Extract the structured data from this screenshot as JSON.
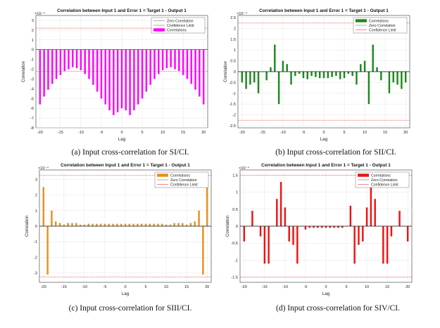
{
  "captions": [
    "(a) Input cross-correlation for SI/CI.",
    "(b) Input cross-correlation for SII/CI.",
    "(c) Input cross-correlation for SIII/CI.",
    "(d) Input cross-correlation for SIV/CI."
  ],
  "chart_data": [
    {
      "type": "bar",
      "title": "Correlation between Input 1 and Error 1 = Target 1 - Output 1",
      "xlabel": "Lag",
      "ylabel": "Correlation",
      "exponent": "×10⁻⁴",
      "xlim": [
        -21,
        21
      ],
      "ylim": [
        -8,
        3.5
      ],
      "yticks": [
        -8,
        -7,
        -6,
        -5,
        -4,
        -3,
        -2,
        -1,
        0,
        1,
        2,
        3
      ],
      "xticks": [
        -20,
        -15,
        -10,
        -5,
        0,
        5,
        10,
        15,
        20
      ],
      "confidence_limit": [
        2.2,
        -2.2
      ],
      "bar_color": "#ff00ff",
      "legend_position": "top-right",
      "legend": [
        "Zero Correlation",
        "Confidence Limit",
        "Correlations"
      ],
      "legend_kinds": [
        "line-gray",
        "line-red",
        "bar"
      ],
      "x": [
        -20,
        -19,
        -18,
        -17,
        -16,
        -15,
        -14,
        -13,
        -12,
        -11,
        -10,
        -9,
        -8,
        -7,
        -6,
        -5,
        -4,
        -3,
        -2,
        -1,
        0,
        1,
        2,
        3,
        4,
        5,
        6,
        7,
        8,
        9,
        10,
        11,
        12,
        13,
        14,
        15,
        16,
        17,
        18,
        19,
        20
      ],
      "values": [
        -5.6,
        -4.8,
        -4.1,
        -3.5,
        -3.0,
        -2.6,
        -2.2,
        -2.0,
        -1.8,
        -1.9,
        -2.1,
        -2.5,
        -3.0,
        -3.6,
        -4.3,
        -5.0,
        -5.6,
        -6.2,
        -6.7,
        -6.4,
        -6.0,
        -6.2,
        -6.7,
        -6.2,
        -5.6,
        -5.0,
        -4.3,
        -3.6,
        -3.0,
        -2.5,
        -2.1,
        -1.9,
        -1.8,
        -2.0,
        -2.2,
        -2.6,
        -3.0,
        -3.5,
        -4.1,
        -4.8,
        -5.6
      ]
    },
    {
      "type": "bar",
      "title": "Correlation between Input 1 and Error 1 = Target 1 - Output 1",
      "xlabel": "Lag",
      "ylabel": "Correlation",
      "exponent": "×10⁻⁴",
      "xlim": [
        -21,
        21
      ],
      "ylim": [
        -2.6,
        2.6
      ],
      "yticks": [
        -2.5,
        -2,
        -1.5,
        -1,
        -0.5,
        0,
        0.5,
        1,
        1.5,
        2,
        2.5
      ],
      "xticks": [
        -20,
        -15,
        -10,
        -5,
        0,
        5,
        10,
        15,
        20
      ],
      "confidence_limit": [
        2.25,
        -2.25
      ],
      "bar_color": "#1a8a1a",
      "legend_position": "top-right",
      "legend": [
        "Correlations",
        "Zero Correlation",
        "Confidence Limit"
      ],
      "legend_kinds": [
        "bar",
        "line-gray",
        "line-red"
      ],
      "x": [
        -20,
        -19,
        -18,
        -17,
        -16,
        -15,
        -14,
        -13,
        -12,
        -11,
        -10,
        -9,
        -8,
        -7,
        -6,
        -5,
        -4,
        -3,
        -2,
        -1,
        0,
        1,
        2,
        3,
        4,
        5,
        6,
        7,
        8,
        9,
        10,
        11,
        12,
        13,
        14,
        15,
        16,
        17,
        18,
        19,
        20
      ],
      "values": [
        -0.5,
        -0.8,
        -0.6,
        -0.5,
        -1.0,
        0.0,
        -0.4,
        0.2,
        1.25,
        -1.5,
        0.5,
        0.35,
        -0.6,
        -0.2,
        -0.1,
        -0.3,
        -0.35,
        -0.2,
        -0.25,
        -0.3,
        -0.3,
        -0.3,
        -0.25,
        -0.2,
        -0.35,
        -0.3,
        -0.1,
        -0.2,
        -0.6,
        0.35,
        0.5,
        -1.5,
        1.25,
        0.2,
        -0.4,
        0.0,
        -1.0,
        -0.5,
        -0.6,
        -0.8,
        -0.5
      ]
    },
    {
      "type": "bar",
      "title": "Correlation between Input 1 and Error 1 = Target 1 - Output 1",
      "xlabel": "Lag",
      "ylabel": "Correlation",
      "exponent": "×10⁻⁴",
      "xlim": [
        -21,
        21
      ],
      "ylim": [
        -3.6,
        3.6
      ],
      "yticks": [
        -3,
        -2,
        -1,
        0,
        1,
        2,
        3
      ],
      "xticks": [
        -20,
        -15,
        -10,
        -5,
        0,
        5,
        10,
        15,
        20
      ],
      "confidence_limit": [
        3.25,
        -3.25
      ],
      "bar_color": "#e8901a",
      "legend_position": "top-right",
      "legend": [
        "Correlations",
        "Zero Correlation",
        "Confidence Limit"
      ],
      "legend_kinds": [
        "bar",
        "line-gray",
        "line-red"
      ],
      "x": [
        -20,
        -19,
        -18,
        -17,
        -16,
        -15,
        -14,
        -13,
        -12,
        -11,
        -10,
        -9,
        -8,
        -7,
        -6,
        -5,
        -4,
        -3,
        -2,
        -1,
        0,
        1,
        2,
        3,
        4,
        5,
        6,
        7,
        8,
        9,
        10,
        11,
        12,
        13,
        14,
        15,
        16,
        17,
        18,
        19,
        20
      ],
      "values": [
        2.5,
        -3.1,
        1.0,
        0.3,
        0.2,
        0.1,
        0.2,
        0.2,
        0.2,
        0.1,
        0.1,
        0.15,
        0.15,
        0.15,
        0.15,
        0.15,
        0.15,
        0.15,
        0.15,
        0.15,
        0.15,
        0.15,
        0.15,
        0.15,
        0.15,
        0.15,
        0.15,
        0.15,
        0.15,
        0.15,
        0.1,
        0.1,
        0.2,
        0.2,
        0.2,
        0.1,
        0.2,
        0.3,
        1.0,
        -3.1,
        2.5
      ]
    },
    {
      "type": "bar",
      "title": "Correlation between Input 1 and Error 1 = Target 1 - Output 1",
      "xlabel": "Lag",
      "ylabel": "Correlation",
      "exponent": "×10⁻⁴",
      "xlim": [
        -21,
        21
      ],
      "ylim": [
        -1.65,
        1.65
      ],
      "yticks": [
        -1.5,
        -1,
        -0.5,
        0,
        0.5,
        1,
        1.5
      ],
      "xticks": [
        -20,
        -15,
        -10,
        -5,
        0,
        5,
        10,
        15,
        20
      ],
      "confidence_limit": [
        1.5,
        -1.5
      ],
      "bar_color": "#ee1111",
      "legend_position": "top-right",
      "legend": [
        "Correlations",
        "Zero Correlation",
        "Confidence Limit"
      ],
      "legend_kinds": [
        "bar",
        "line-gray",
        "line-red"
      ],
      "x": [
        -20,
        -19,
        -18,
        -17,
        -16,
        -15,
        -14,
        -13,
        -12,
        -11,
        -10,
        -9,
        -8,
        -7,
        -6,
        -5,
        -4,
        -3,
        -2,
        -1,
        0,
        1,
        2,
        3,
        4,
        5,
        6,
        7,
        8,
        9,
        10,
        11,
        12,
        13,
        14,
        15,
        16,
        17,
        18,
        19,
        20
      ],
      "values": [
        -0.45,
        0.0,
        0.45,
        0.0,
        -0.3,
        -1.1,
        -1.1,
        0.0,
        0.8,
        1.3,
        0.55,
        -0.45,
        -0.55,
        -1.1,
        0.0,
        -0.1,
        -0.05,
        -0.05,
        -0.05,
        -0.05,
        -0.05,
        -0.05,
        -0.05,
        -0.05,
        -0.05,
        0.0,
        0.6,
        -1.1,
        -0.55,
        -0.45,
        0.55,
        1.3,
        0.8,
        0.0,
        -1.1,
        -1.1,
        -0.3,
        0.0,
        0.45,
        0.0,
        -0.45
      ]
    }
  ]
}
